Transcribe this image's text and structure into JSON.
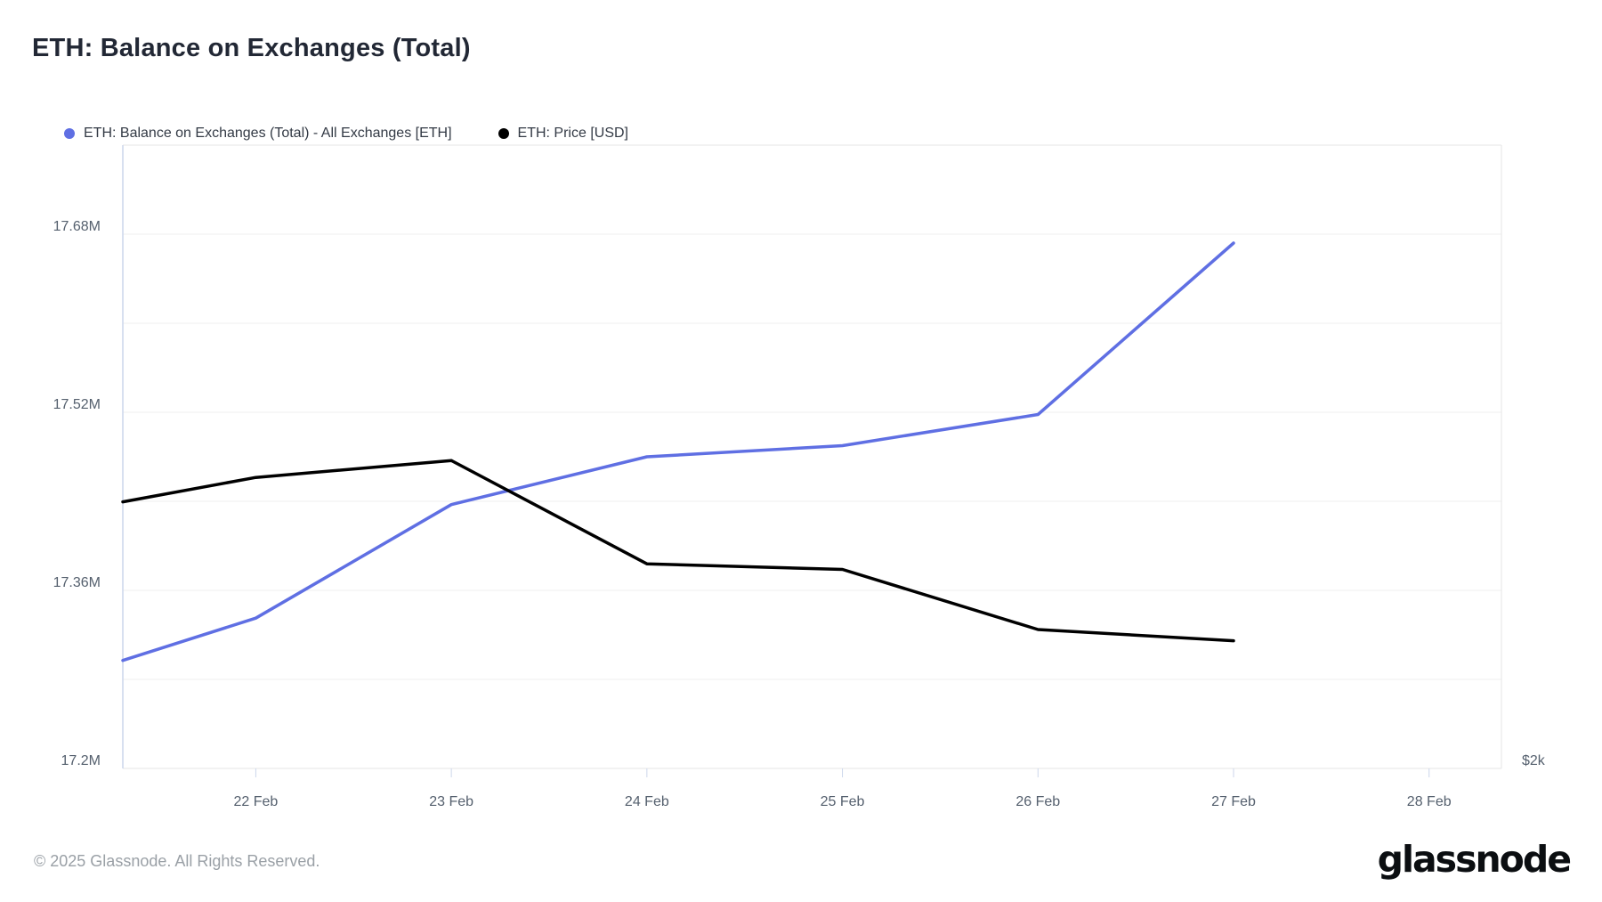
{
  "page": {
    "title": "ETH: Balance on Exchanges (Total)",
    "footer": "© 2025 Glassnode. All Rights Reserved.",
    "brand": "glassnode"
  },
  "legend": [
    {
      "label": "ETH: Balance on Exchanges (Total) - All Exchanges [ETH]",
      "color": "#5f6fe3"
    },
    {
      "label": "ETH: Price [USD]",
      "color": "#000000"
    }
  ],
  "chart_data": {
    "type": "line",
    "title": "ETH: Balance on Exchanges (Total)",
    "grid": true,
    "legend_position": "top-left",
    "x_axis": {
      "tick_labels": [
        "22 Feb",
        "23 Feb",
        "24 Feb",
        "25 Feb",
        "26 Feb",
        "27 Feb",
        "28 Feb"
      ],
      "tick_day_index": [
        0,
        1,
        2,
        3,
        4,
        5,
        6
      ],
      "range_day_index": [
        -0.68,
        6.37
      ]
    },
    "y_axis_left": {
      "unit": "ETH (millions)",
      "tick_labels": [
        "17.2M",
        "17.36M",
        "17.52M",
        "17.68M"
      ],
      "tick_values": [
        17.2,
        17.36,
        17.52,
        17.68
      ],
      "range": [
        17.2,
        17.76
      ],
      "gridline_step": 0.08
    },
    "y_axis_right": {
      "unit": "USD",
      "tick_labels": [
        "$2k"
      ],
      "tick_values": [
        2000
      ],
      "range": [
        2000,
        3660
      ]
    },
    "series": [
      {
        "name": "ETH: Balance on Exchanges (Total) - All Exchanges [ETH]",
        "axis": "left",
        "color": "#5f6fe3",
        "x_day_index": [
          -0.68,
          0,
          1,
          2,
          3,
          4,
          5
        ],
        "values": [
          17.297,
          17.335,
          17.437,
          17.48,
          17.49,
          17.518,
          17.672
        ]
      },
      {
        "name": "ETH: Price [USD]",
        "axis": "right",
        "color": "#000000",
        "x_day_index": [
          -0.68,
          0,
          1,
          2,
          3,
          4,
          5
        ],
        "values": [
          2710,
          2775,
          2820,
          2545,
          2530,
          2370,
          2340
        ]
      }
    ],
    "plot_colors": {
      "grid": "#efefef",
      "left_axis_line": "#ccd6eb",
      "border": "#e6e6e6",
      "tick_mark": "#ccd6eb",
      "tick_label": "#55606e"
    }
  }
}
